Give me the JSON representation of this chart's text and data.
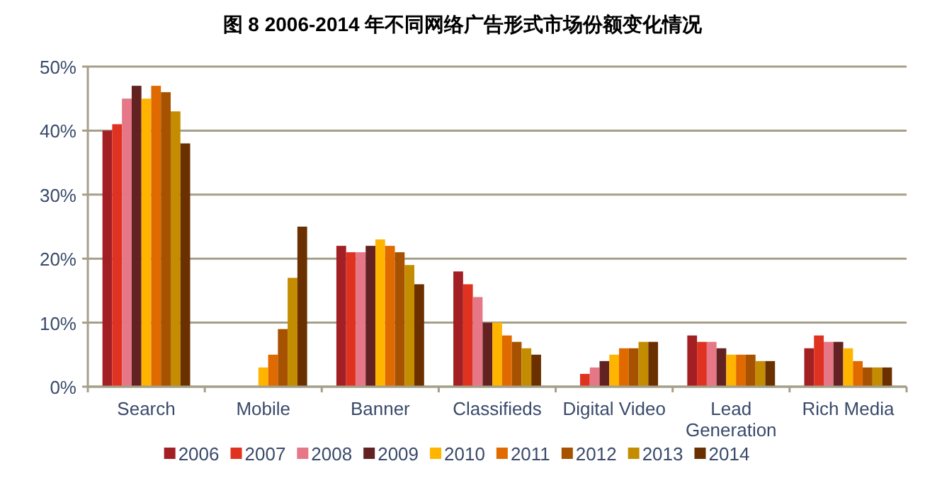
{
  "chart_data": {
    "type": "bar",
    "title": "图 8  2006-2014 年不同网络广告形式市场份额变化情况",
    "categories": [
      "Search",
      "Mobile",
      "Banner",
      "Classifieds",
      "Digital Video",
      "Lead Generation",
      "Rich Media"
    ],
    "series": [
      {
        "name": "2006",
        "color": "#a21f24",
        "values": [
          40,
          null,
          22,
          18,
          null,
          8,
          6
        ]
      },
      {
        "name": "2007",
        "color": "#e03220",
        "values": [
          41,
          null,
          21,
          16,
          2,
          7,
          8
        ]
      },
      {
        "name": "2008",
        "color": "#e57787",
        "values": [
          45,
          null,
          21,
          14,
          3,
          7,
          7
        ]
      },
      {
        "name": "2009",
        "color": "#632222",
        "values": [
          47,
          null,
          22,
          10,
          4,
          6,
          7
        ]
      },
      {
        "name": "2010",
        "color": "#ffb400",
        "values": [
          45,
          3,
          23,
          10,
          5,
          5,
          6
        ]
      },
      {
        "name": "2011",
        "color": "#e06a00",
        "values": [
          47,
          5,
          22,
          8,
          6,
          5,
          4
        ]
      },
      {
        "name": "2012",
        "color": "#a65200",
        "values": [
          46,
          9,
          21,
          7,
          6,
          5,
          3
        ]
      },
      {
        "name": "2013",
        "color": "#c48c00",
        "values": [
          43,
          17,
          19,
          6,
          7,
          4,
          3
        ]
      },
      {
        "name": "2014",
        "color": "#6b3000",
        "values": [
          38,
          25,
          16,
          5,
          7,
          4,
          3
        ]
      }
    ],
    "ylim": [
      0,
      50
    ],
    "yticks": [
      {
        "value": 0,
        "label": "0%"
      },
      {
        "value": 10,
        "label": "10%"
      },
      {
        "value": 20,
        "label": "20%"
      },
      {
        "value": 30,
        "label": "30%"
      },
      {
        "value": 40,
        "label": "40%"
      },
      {
        "value": 50,
        "label": "50%"
      }
    ],
    "grid": "y",
    "legend": "bottom"
  }
}
